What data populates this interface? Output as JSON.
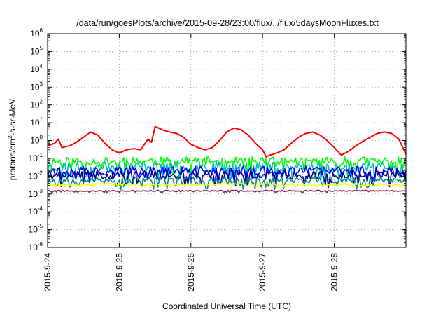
{
  "chart_data": {
    "type": "line",
    "title": "/data/run/goesPlots/archive/2015-09-28/23:00/flux/../flux/5daysMoonFluxes.txt",
    "xlabel": "Coordinated Universal Time (UTC)",
    "ylabel": {
      "prefix": "protons/cm",
      "superscript": "2",
      "suffix": "-s-sr-MeV"
    },
    "x_unit": "days since 2015-09-24 00:00 UTC",
    "xlim": [
      0,
      5
    ],
    "x_ticks": [
      {
        "x": 0,
        "label": "2015-9-24"
      },
      {
        "x": 1,
        "label": "2015-9-25"
      },
      {
        "x": 2,
        "label": "2015-9-26"
      },
      {
        "x": 3,
        "label": "2015-9-27"
      },
      {
        "x": 4,
        "label": "2015-9-28"
      }
    ],
    "y_scale": "log",
    "ylim": [
      1e-06,
      1000000.0
    ],
    "y_ticks": [
      {
        "value": 1000000.0,
        "base": "10",
        "exp": "6"
      },
      {
        "value": 100000.0,
        "base": "10",
        "exp": "5"
      },
      {
        "value": 10000.0,
        "base": "10",
        "exp": "4"
      },
      {
        "value": 1000.0,
        "base": "10",
        "exp": "3"
      },
      {
        "value": 100.0,
        "base": "10",
        "exp": "2"
      },
      {
        "value": 10.0,
        "base": "10",
        "exp": "1"
      },
      {
        "value": 1.0,
        "base": "10",
        "exp": "0"
      },
      {
        "value": 0.1,
        "base": "10",
        "exp": "-1"
      },
      {
        "value": 0.01,
        "base": "10",
        "exp": "-2"
      },
      {
        "value": 0.001,
        "base": "10",
        "exp": "-3"
      },
      {
        "value": 0.0001,
        "base": "10",
        "exp": "-4"
      },
      {
        "value": 1e-05,
        "base": "10",
        "exp": "-5"
      },
      {
        "value": 1e-06,
        "base": "10",
        "exp": "-6"
      }
    ],
    "grid": true,
    "grid_style": "dotted",
    "legend": "none",
    "series": [
      {
        "color": "#ff0000",
        "x": [
          0,
          0.1,
          0.15,
          0.2,
          0.25,
          0.3,
          0.35,
          0.4,
          0.5,
          0.6,
          0.7,
          0.8,
          0.9,
          1.0,
          1.1,
          1.2,
          1.3,
          1.4,
          1.45,
          1.5,
          1.55,
          1.6,
          1.7,
          1.8,
          1.9,
          2.0,
          2.1,
          2.2,
          2.3,
          2.4,
          2.5,
          2.6,
          2.7,
          2.8,
          2.9,
          3.0,
          3.05,
          3.1,
          3.2,
          3.3,
          3.4,
          3.5,
          3.6,
          3.7,
          3.8,
          3.9,
          4.0,
          4.1,
          4.2,
          4.3,
          4.4,
          4.5,
          4.6,
          4.7,
          4.8,
          4.9,
          5.0
        ],
        "y": [
          0.5,
          0.7,
          1.2,
          0.4,
          0.45,
          0.5,
          0.6,
          0.8,
          1.5,
          3.0,
          2.0,
          0.7,
          0.3,
          0.2,
          0.3,
          0.35,
          0.3,
          1.2,
          0.8,
          6.0,
          5.0,
          4.0,
          3.0,
          2.5,
          1.5,
          0.6,
          0.4,
          0.3,
          0.4,
          1.0,
          3.0,
          5.0,
          4.0,
          2.0,
          0.7,
          0.3,
          0.12,
          0.15,
          0.2,
          0.3,
          0.7,
          1.5,
          2.5,
          3.0,
          2.0,
          1.0,
          0.4,
          0.15,
          0.25,
          0.5,
          0.9,
          1.5,
          2.5,
          3.0,
          2.5,
          1.2,
          0.17
        ]
      },
      {
        "color": "#00ff00",
        "base": 0.07,
        "amp": 0.8,
        "seed": 11
      },
      {
        "color": "#00c0c0",
        "base": 0.035,
        "amp": 0.9,
        "seed": 23
      },
      {
        "color": "#0000ff",
        "base": 0.02,
        "amp": 0.85,
        "seed": 37
      },
      {
        "color": "#00008b",
        "base": 0.012,
        "amp": 0.8,
        "seed": 41
      },
      {
        "color": "#008b8b",
        "base": 0.006,
        "amp": 0.6,
        "seed": 53
      },
      {
        "color": "#ffff00",
        "base": 0.0035,
        "amp": 0.2,
        "seed": 67
      },
      {
        "color": "#8b2252",
        "base": 0.0015,
        "amp": 0.12,
        "seed": 79
      }
    ]
  }
}
